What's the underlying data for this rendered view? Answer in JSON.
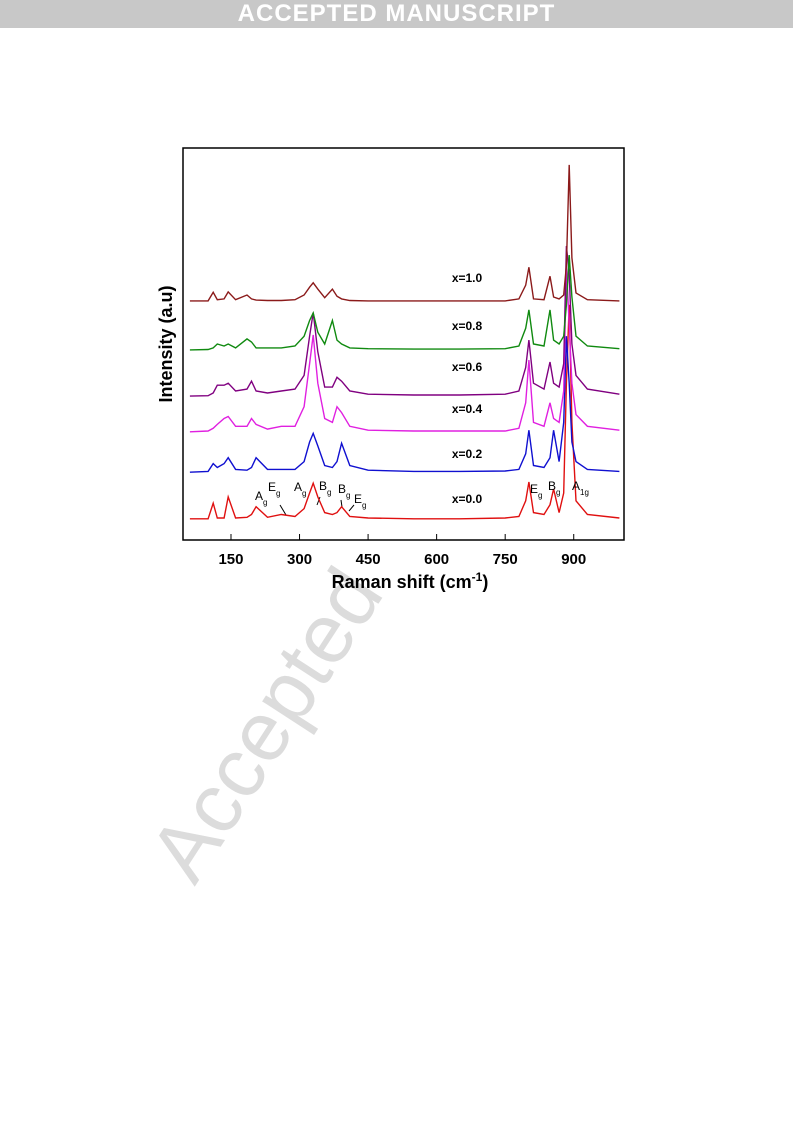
{
  "header": "ACCEPTED MANUSCRIPT",
  "watermark": "Accepted",
  "chart_data": {
    "type": "line",
    "x_label": {
      "text": "Raman shift (cm",
      "sup": "-1",
      "end": ")"
    },
    "y_label": "Intensity (a.u)",
    "xlim": [
      45,
      1010
    ],
    "xticks": [
      150,
      300,
      450,
      600,
      750,
      900
    ],
    "ylim": [
      0,
      100
    ],
    "x": [
      60,
      100,
      111,
      120,
      135,
      144,
      160,
      185,
      195,
      205,
      230,
      260,
      290,
      310,
      322,
      330,
      340,
      355,
      372,
      382,
      392,
      410,
      450,
      550,
      650,
      750,
      780,
      795,
      802,
      812,
      835,
      848,
      856,
      868,
      878,
      884,
      890,
      896,
      905,
      930,
      1000
    ],
    "series": [
      {
        "name": "x=0.0",
        "color": "#e01010",
        "values": [
          5.4,
          5.4,
          9.4,
          5.6,
          5.6,
          11,
          5.6,
          5.8,
          6.5,
          8.5,
          5.8,
          6.5,
          6,
          8,
          12,
          14.5,
          11,
          7,
          6.5,
          7,
          8.5,
          6,
          5.6,
          5.4,
          5.4,
          5.6,
          6,
          10,
          14.8,
          7,
          6.5,
          9,
          13,
          7,
          12,
          40,
          60,
          30,
          10,
          6.5,
          5.6
        ]
      },
      {
        "name": "x=0.2",
        "color": "#1010d0",
        "values": [
          17.3,
          17.5,
          19.5,
          18.5,
          19.5,
          21,
          18,
          17.8,
          18.5,
          21,
          18,
          18,
          18,
          20,
          25,
          27.2,
          24,
          19,
          18.5,
          20,
          24.7,
          19,
          17.8,
          17.5,
          17.5,
          17.6,
          18,
          22,
          28,
          19,
          18.5,
          21,
          28,
          20,
          30,
          52,
          40,
          25,
          20,
          18,
          17.5
        ]
      },
      {
        "name": "x=0.4",
        "color": "#e020e0",
        "values": [
          27.6,
          27.8,
          28.5,
          29.5,
          31,
          31.5,
          29,
          29,
          31,
          29.5,
          28.3,
          29,
          29,
          34,
          45,
          52.3,
          40,
          31,
          30,
          34,
          32.5,
          29,
          28,
          27.8,
          27.8,
          27.8,
          28.5,
          35,
          45.9,
          30,
          29,
          35,
          31,
          30,
          38,
          70,
          55,
          40,
          32,
          29,
          28
        ]
      },
      {
        "name": "x=0.6",
        "color": "#800080",
        "values": [
          36.7,
          36.8,
          37.5,
          39.5,
          39.5,
          40,
          38,
          38.5,
          40.5,
          38,
          37.5,
          38,
          38.5,
          42,
          52,
          58,
          48,
          39,
          39,
          41.5,
          40.5,
          38,
          37.2,
          37,
          37,
          37.2,
          38,
          44,
          51,
          40,
          38.5,
          45.4,
          40,
          39,
          45,
          75,
          68,
          50,
          42,
          38.5,
          37.2
        ]
      },
      {
        "name": "x=0.8",
        "color": "#108a10",
        "values": [
          48.5,
          48.6,
          49,
          50,
          49.5,
          50,
          49,
          51.3,
          50.5,
          49,
          49,
          49,
          49.5,
          52,
          56,
          57.9,
          53,
          50,
          56,
          51,
          50,
          49,
          48.8,
          48.7,
          48.7,
          48.8,
          49.5,
          54,
          58.7,
          50,
          49.5,
          58.7,
          51,
          50,
          52,
          60,
          72.7,
          62,
          52,
          49.5,
          48.8
        ]
      },
      {
        "name": "x=1.0",
        "color": "#8b1a1a",
        "values": [
          61,
          61,
          63.2,
          61.3,
          61.5,
          63.3,
          61.3,
          62.5,
          61.5,
          61.2,
          61.1,
          61.1,
          61.3,
          62.5,
          64.5,
          65.6,
          64,
          61.8,
          64,
          62.2,
          61.5,
          61.1,
          61,
          61,
          61,
          61,
          61.5,
          65,
          69.6,
          61.5,
          61.3,
          67.3,
          62,
          61.5,
          62.5,
          70,
          95.7,
          72,
          63,
          61.3,
          61
        ]
      }
    ],
    "annotations": [
      {
        "text": "A",
        "sub": "g"
      },
      {
        "text": "E",
        "sub": "g"
      },
      {
        "text": "A",
        "sub": "g"
      },
      {
        "text": "B",
        "sub": "g"
      },
      {
        "text": "B",
        "sub": "g"
      },
      {
        "text": "E",
        "sub": "g"
      },
      {
        "text": "E",
        "sub": "g"
      },
      {
        "text": "B",
        "sub": "g"
      },
      {
        "text": "A",
        "sub": "1g"
      }
    ]
  }
}
